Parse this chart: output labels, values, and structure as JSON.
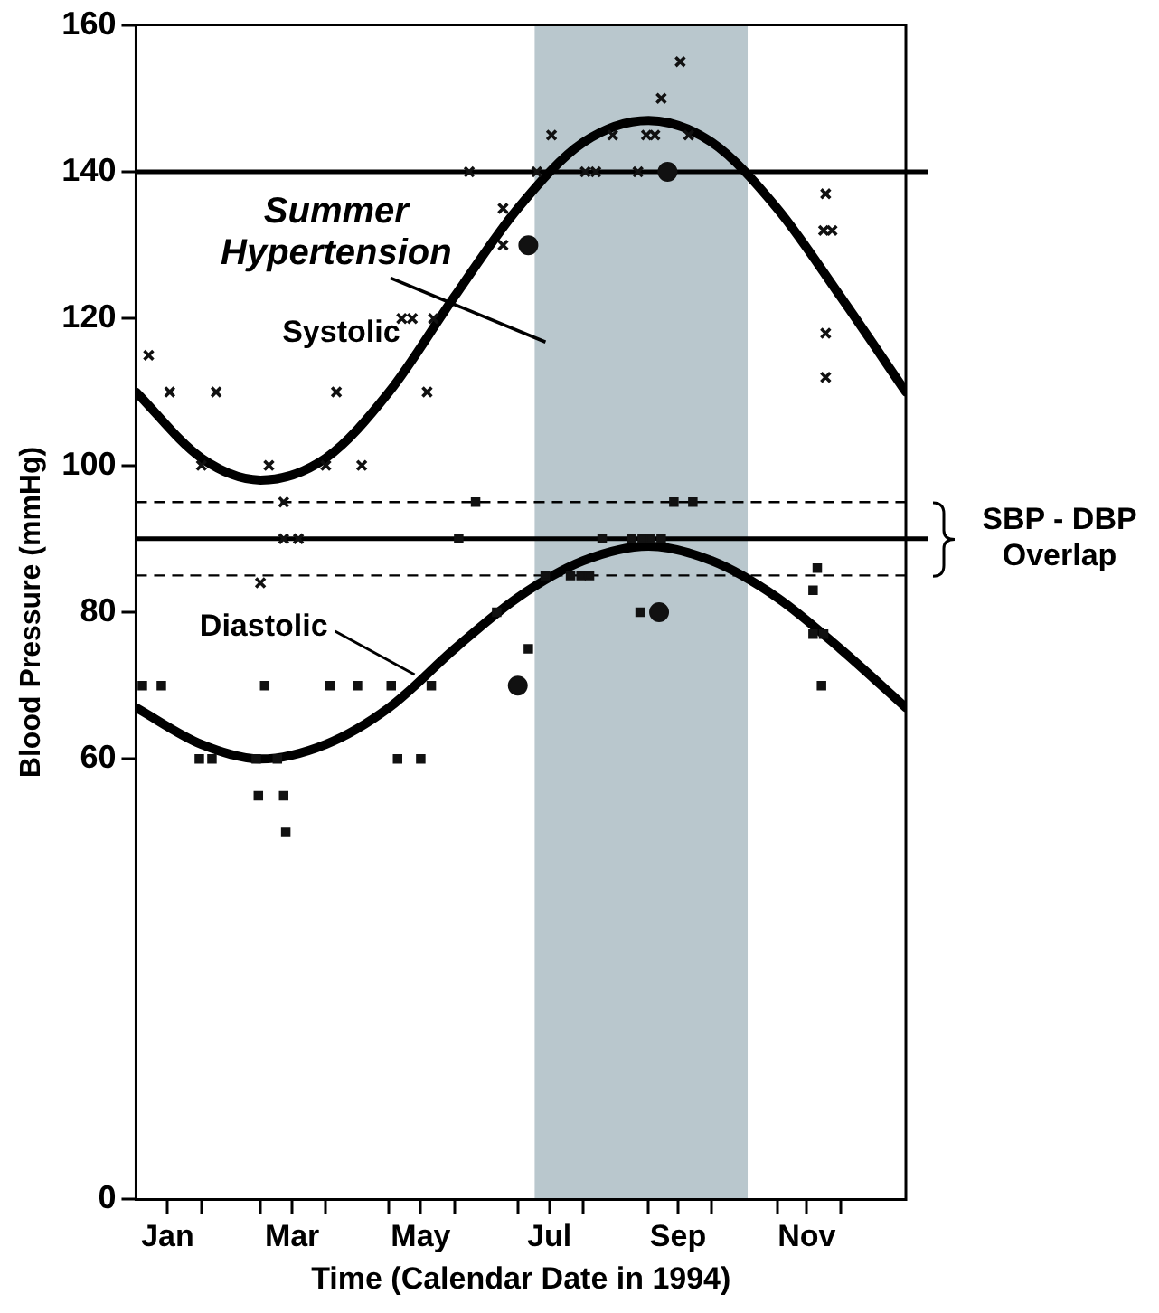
{
  "chart_data": {
    "type": "scatter",
    "xlabel": "Time (Calendar Date in 1994)",
    "ylabel": "Blood Pressure (mmHg)",
    "xlim": [
      "1994-01-01",
      "1995-01-01"
    ],
    "xticks": [
      {
        "value": "1994-01-16",
        "label": "Jan"
      },
      {
        "value": "1994-02-01",
        "label": null
      },
      {
        "value": "1994-03-01",
        "label": null
      },
      {
        "value": "1994-03-16",
        "label": "Mar"
      },
      {
        "value": "1994-04-01",
        "label": null
      },
      {
        "value": "1994-05-01",
        "label": null
      },
      {
        "value": "1994-05-16",
        "label": "May"
      },
      {
        "value": "1994-06-01",
        "label": null
      },
      {
        "value": "1994-07-01",
        "label": null
      },
      {
        "value": "1994-07-16",
        "label": "Jul"
      },
      {
        "value": "1994-08-01",
        "label": null
      },
      {
        "value": "1994-09-01",
        "label": null
      },
      {
        "value": "1994-09-15",
        "label": "Sep"
      },
      {
        "value": "1994-10-01",
        "label": null
      },
      {
        "value": "1994-11-01",
        "label": null
      },
      {
        "value": "1994-11-15",
        "label": "Nov"
      },
      {
        "value": "1994-12-01",
        "label": null
      }
    ],
    "ylim": [
      0,
      160
    ],
    "yticks": [
      0,
      60,
      80,
      100,
      120,
      140,
      160
    ],
    "grid": false,
    "legend": false,
    "bands": [
      {
        "axis": "x",
        "from": "1994-07-09",
        "to": "1994-10-18",
        "color": "#b9c7cd"
      }
    ],
    "ref_lines": [
      {
        "axis": "y",
        "value": 140,
        "line_style": "solid",
        "color": "#000000"
      },
      {
        "axis": "y",
        "value": 90,
        "line_style": "solid",
        "color": "#000000"
      },
      {
        "axis": "y",
        "value": 95,
        "line_style": "dashed",
        "color": "#000000"
      },
      {
        "axis": "y",
        "value": 85,
        "line_style": "dashed",
        "color": "#000000"
      }
    ],
    "annotations": [
      "Summer Hypertension",
      "SBP - DBP Overlap"
    ],
    "series": [
      {
        "marker": "cross",
        "color": "#111111",
        "x": [
          "1994-01-07",
          "1994-01-17",
          "1994-02-08",
          "1994-04-06",
          "1994-05-19",
          "1994-02-01",
          "1994-03-05",
          "1994-04-01",
          "1994-04-18",
          "1994-05-07",
          "1994-05-12",
          "1994-05-22",
          "1994-06-08",
          "1994-06-24",
          "1994-06-24",
          "1994-07-10",
          "1994-07-17",
          "1994-09-16",
          "1994-09-07",
          "1994-08-15",
          "1994-08-31",
          "1994-09-04",
          "1994-09-20",
          "1994-08-02",
          "1994-08-07",
          "1994-08-27",
          "1994-11-24",
          "1994-11-23",
          "1994-11-27",
          "1994-11-24",
          "1994-11-24",
          "1994-03-12",
          "1994-03-12",
          "1994-03-19",
          "1994-03-01"
        ],
        "values": [
          115,
          110,
          110,
          110,
          110,
          100,
          100,
          100,
          100,
          120,
          120,
          120,
          140,
          135,
          130,
          140,
          145,
          155,
          150,
          145,
          145,
          145,
          145,
          140,
          140,
          140,
          137,
          132,
          132,
          118,
          112,
          95,
          90,
          90,
          84
        ]
      },
      {
        "marker": "circle",
        "color": "#111111",
        "x": [
          "1994-07-06",
          "1994-09-10"
        ],
        "values": [
          130,
          140
        ]
      },
      {
        "marker": "square",
        "color": "#111111",
        "x": [
          "1994-01-04",
          "1994-01-13",
          "1994-03-03",
          "1994-04-03",
          "1994-04-16",
          "1994-05-02",
          "1994-05-21",
          "1994-01-31",
          "1994-02-06",
          "1994-03-09",
          "1994-02-27",
          "1994-05-05",
          "1994-05-16",
          "1994-02-28",
          "1994-03-12",
          "1994-03-13",
          "1994-06-11",
          "1994-06-03",
          "1994-06-21",
          "1994-07-06",
          "1994-07-14",
          "1994-07-26",
          "1994-07-31",
          "1994-08-04",
          "1994-08-10",
          "1994-08-24",
          "1994-08-29",
          "1994-09-02",
          "1994-09-07",
          "1994-09-13",
          "1994-09-22",
          "1994-08-28",
          "1994-11-20",
          "1994-11-18",
          "1994-11-18",
          "1994-11-23",
          "1994-11-22"
        ],
        "values": [
          70,
          70,
          70,
          70,
          70,
          70,
          70,
          60,
          60,
          60,
          60,
          60,
          60,
          55,
          55,
          50,
          95,
          90,
          80,
          75,
          85,
          85,
          85,
          85,
          90,
          90,
          90,
          90,
          90,
          95,
          95,
          80,
          86,
          83,
          77,
          77,
          70
        ]
      },
      {
        "marker": "circle",
        "color": "#111111",
        "x": [
          "1994-07-01",
          "1994-09-06"
        ],
        "values": [
          70,
          80
        ]
      },
      {
        "type": "line",
        "name": "Systolic",
        "marker": "none",
        "line_style": "solid",
        "color": "#000000",
        "x": [
          "1994-01-01",
          "1994-02-01",
          "1994-03-01",
          "1994-04-01",
          "1994-05-01",
          "1994-06-01",
          "1994-07-01",
          "1994-08-01",
          "1994-09-01",
          "1994-10-01",
          "1994-11-01",
          "1994-12-01",
          "1995-01-01"
        ],
        "values": [
          110,
          101,
          98,
          101,
          110,
          123,
          135,
          144,
          147,
          144,
          135,
          123,
          110
        ]
      },
      {
        "type": "line",
        "name": "Diastolic",
        "marker": "none",
        "line_style": "solid",
        "color": "#000000",
        "x": [
          "1994-01-01",
          "1994-02-01",
          "1994-03-01",
          "1994-04-01",
          "1994-05-01",
          "1994-06-01",
          "1994-07-01",
          "1994-08-01",
          "1994-09-01",
          "1994-10-01",
          "1994-11-01",
          "1994-12-01",
          "1995-01-01"
        ],
        "values": [
          67,
          62,
          60,
          62,
          67,
          75,
          82,
          87,
          89,
          87,
          82,
          75,
          67
        ]
      }
    ]
  }
}
